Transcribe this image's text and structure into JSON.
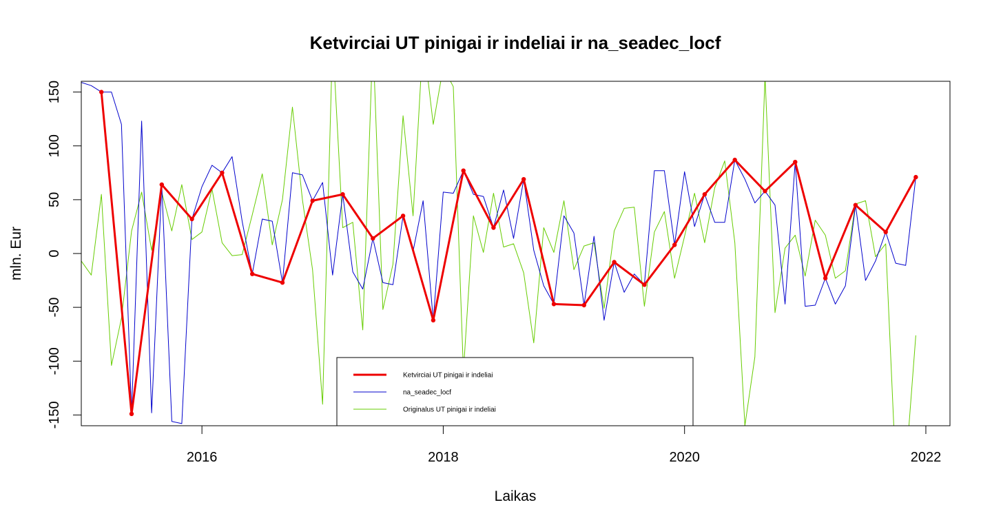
{
  "chart_data": {
    "type": "line",
    "title": "Ketvirciai UT pinigai ir indeliai ir na_seadec_locf",
    "xlabel": "Laikas",
    "ylabel": "mln. Eur",
    "xlim": [
      2015.0,
      2022.2
    ],
    "ylim": [
      -160,
      160
    ],
    "x_ticks": [
      2016,
      2018,
      2020,
      2022
    ],
    "x_tick_labels": [
      "2016",
      "2018",
      "2020",
      "2022"
    ],
    "y_ticks": [
      -150,
      -100,
      -50,
      0,
      50,
      100,
      150
    ],
    "y_tick_labels": [
      "-150",
      "-100",
      "-50",
      "0",
      "50",
      "100",
      "150"
    ],
    "grid": false,
    "legend_position": "bottom-center",
    "series": [
      {
        "name": "Ketvirciai UT pinigai ir indeliai",
        "color": "#ee0000",
        "line_width": 3,
        "points": true,
        "x": [
          2015.167,
          2015.417,
          2015.667,
          2015.917,
          2016.167,
          2016.417,
          2016.667,
          2016.917,
          2017.167,
          2017.417,
          2017.667,
          2017.917,
          2018.167,
          2018.417,
          2018.667,
          2018.917,
          2019.167,
          2019.417,
          2019.667,
          2019.917,
          2020.167,
          2020.417,
          2020.667,
          2020.917,
          2021.167,
          2021.417,
          2021.667,
          2021.917
        ],
        "y": [
          150,
          -149,
          64,
          32,
          75,
          -19,
          -27,
          49,
          55,
          14,
          35,
          -62,
          77,
          24,
          69,
          -47,
          -48,
          -8,
          -29,
          8,
          55,
          87,
          58,
          85,
          -23,
          45,
          20,
          71
        ]
      },
      {
        "name": "na_seadec_locf",
        "color": "#0000cc",
        "line_width": 1,
        "points": false,
        "x": [
          2015.0,
          2015.083,
          2015.167,
          2015.25,
          2015.333,
          2015.417,
          2015.5,
          2015.583,
          2015.667,
          2015.75,
          2015.833,
          2015.917,
          2016.0,
          2016.083,
          2016.167,
          2016.25,
          2016.333,
          2016.417,
          2016.5,
          2016.583,
          2016.667,
          2016.75,
          2016.833,
          2016.917,
          2017.0,
          2017.083,
          2017.167,
          2017.25,
          2017.333,
          2017.417,
          2017.5,
          2017.583,
          2017.667,
          2017.75,
          2017.833,
          2017.917,
          2018.0,
          2018.083,
          2018.167,
          2018.25,
          2018.333,
          2018.417,
          2018.5,
          2018.583,
          2018.667,
          2018.75,
          2018.833,
          2018.917,
          2019.0,
          2019.083,
          2019.167,
          2019.25,
          2019.333,
          2019.417,
          2019.5,
          2019.583,
          2019.667,
          2019.75,
          2019.833,
          2019.917,
          2020.0,
          2020.083,
          2020.167,
          2020.25,
          2020.333,
          2020.417,
          2020.5,
          2020.583,
          2020.667,
          2020.75,
          2020.833,
          2020.917,
          2021.0,
          2021.083,
          2021.167,
          2021.25,
          2021.333,
          2021.417,
          2021.5,
          2021.583,
          2021.667,
          2021.75,
          2021.833,
          2021.917
        ],
        "y": [
          159,
          156,
          150,
          150,
          120,
          -149,
          123,
          -148,
          64,
          -156,
          -158,
          32,
          62,
          82,
          75,
          90,
          30,
          -19,
          32,
          30,
          -27,
          75,
          73,
          49,
          66,
          -20,
          55,
          -17,
          -33,
          14,
          -27,
          -29,
          35,
          2,
          49,
          -62,
          57,
          56,
          77,
          55,
          53,
          24,
          59,
          14,
          69,
          3,
          -30,
          -47,
          35,
          19,
          -48,
          16,
          -62,
          -8,
          -36,
          -19,
          -29,
          77,
          77,
          8,
          76,
          25,
          55,
          29,
          29,
          87,
          69,
          47,
          58,
          45,
          -47,
          85,
          -49,
          -48,
          -23,
          -47,
          -30,
          45,
          -25,
          -7,
          20,
          -9,
          -11,
          71
        ]
      },
      {
        "name": "Originalus UT pinigai ir indeliai",
        "color": "#66cc00",
        "line_width": 1,
        "points": false,
        "segments": [
          {
            "x": [
              2015.0,
              2015.083,
              2015.167,
              2015.25,
              2015.333,
              2015.417,
              2015.5,
              2015.583,
              2015.667,
              2015.75,
              2015.833,
              2015.917,
              2016.0,
              2016.083,
              2016.167,
              2016.25,
              2016.333,
              2016.417,
              2016.5,
              2016.583,
              2016.667,
              2016.75,
              2016.833,
              2016.917,
              2017.0,
              2017.083,
              2017.167,
              2017.25,
              2017.333,
              2017.417,
              2017.5,
              2017.583,
              2017.667,
              2017.75,
              2017.833,
              2017.917,
              2018.0,
              2018.083,
              2018.167,
              2018.25,
              2018.333,
              2018.417,
              2018.5,
              2018.583,
              2018.667,
              2018.75,
              2018.833,
              2018.917,
              2019.0,
              2019.083,
              2019.167,
              2019.25,
              2019.333,
              2019.417,
              2019.5,
              2019.583,
              2019.667,
              2019.75,
              2019.833,
              2019.917,
              2020.0,
              2020.083,
              2020.167,
              2020.25,
              2020.333,
              2020.417,
              2020.5,
              2020.583,
              2020.667,
              2020.75,
              2020.833,
              2020.917,
              2021.0,
              2021.083,
              2021.167,
              2021.25,
              2021.333,
              2021.417,
              2021.5,
              2021.583,
              2021.667,
              2021.75,
              2021.833,
              2021.917
            ],
            "y": [
              -7,
              -20,
              55,
              -104,
              -60,
              21,
              57,
              3,
              57,
              21,
              64,
              13,
              20,
              60,
              10,
              -2,
              -1,
              36,
              74,
              8,
              50,
              136,
              50,
              -15,
              -140,
              200,
              24,
              29,
              -71,
              200,
              -52,
              -10,
              128,
              35,
              200,
              120,
              173,
              155,
              -110,
              35,
              1,
              56,
              6,
              9,
              -18,
              -83,
              24,
              1,
              49,
              -15,
              7,
              10,
              -51,
              21,
              42,
              43,
              -49,
              20,
              39,
              -23,
              16,
              56,
              10,
              61,
              86,
              10,
              -160,
              -96,
              165,
              -55,
              5,
              17,
              -21,
              31,
              17,
              -23,
              -16,
              46,
              49,
              -3,
              9,
              -200,
              -200,
              -76
            ]
          }
        ]
      }
    ]
  },
  "legend": {
    "entries": [
      {
        "label": "Ketvirciai UT pinigai ir indeliai",
        "color": "#ee0000",
        "width": 3
      },
      {
        "label": "na_seadec_locf",
        "color": "#0000cc",
        "width": 1
      },
      {
        "label": "Originalus UT pinigai ir indeliai",
        "color": "#66cc00",
        "width": 1
      }
    ]
  }
}
